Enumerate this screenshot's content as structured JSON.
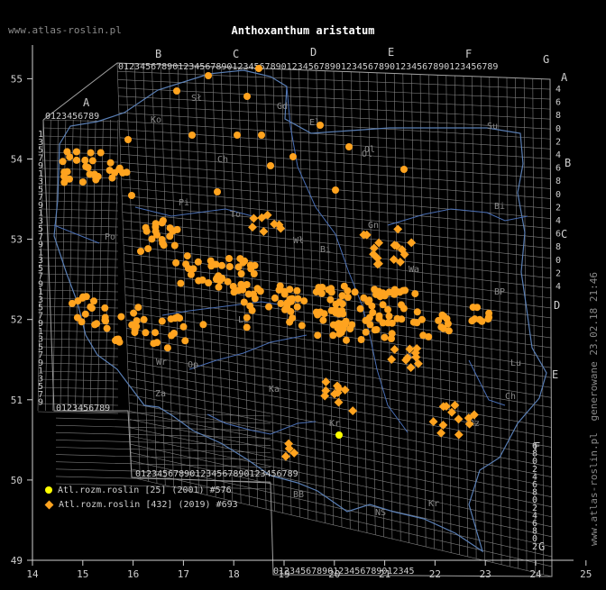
{
  "title": "Anthoxanthum aristatum",
  "site_top": "www.atlas-roslin.pl",
  "site_vertical": "www.atlas-roslin.pl",
  "generated": "generowane 23.02.18 21:46",
  "colors": {
    "background": "#000000",
    "grid": "#7f7f7f",
    "borders": "#5a7fb5",
    "rivers": "#4a6fb5",
    "point_yellow": "#ffff00",
    "point_orange": "#ffa31f",
    "axis": "#cfcfcf"
  },
  "x_axis": {
    "ticks": [
      "14",
      "15",
      "16",
      "17",
      "18",
      "19",
      "20",
      "21",
      "22",
      "23",
      "24",
      "25"
    ],
    "range": [
      14,
      25
    ]
  },
  "y_axis": {
    "ticks": [
      "49",
      "50",
      "51",
      "52",
      "53",
      "54",
      "55"
    ],
    "range": [
      49,
      55.6
    ]
  },
  "grid_letters": {
    "top": [
      "A",
      "B",
      "C",
      "D",
      "E",
      "F",
      "G"
    ],
    "right": [
      "A",
      "B",
      "C",
      "D",
      "E",
      "F",
      "G"
    ]
  },
  "top_digits_A": "0123456789",
  "top_digits_main": "0123456789012345678901234567890123456789012345678901234567890123456789",
  "bottom_digits_west": "0123456789",
  "bottom_digits_main": "012345678901234567890123456789",
  "bottom_digits_east": "01234567890123456789012345",
  "left_digits": [
    "1",
    "3",
    "5",
    "7",
    "9",
    "1",
    "3",
    "5",
    "7",
    "9",
    "1",
    "3",
    "5",
    "7",
    "9",
    "1",
    "3",
    "5",
    "7",
    "9",
    "1",
    "3",
    "5",
    "7",
    "9",
    "1",
    "3",
    "5",
    "7",
    "9",
    "1",
    "3",
    "5",
    "7",
    "9"
  ],
  "right_digits": [
    "4",
    "6",
    "8",
    "0",
    "2",
    "4",
    "6",
    "8",
    "0",
    "2",
    "4",
    "6",
    "8",
    "0",
    "2",
    "4",
    "6",
    "8",
    "0",
    "2",
    "4",
    "6",
    "8",
    "0",
    "2",
    "4",
    "6",
    "8",
    "0",
    "2",
    "4",
    "6",
    "8",
    "0",
    "2",
    "4",
    "6",
    "8",
    "0",
    "2",
    "4",
    "6",
    "8"
  ],
  "region_labels": [
    "Sł",
    "Gd",
    "Ko",
    "El",
    "Ol",
    "Su",
    "Ch",
    "Bi",
    "Pi",
    "To",
    "Ol",
    "Wł",
    "Gn",
    "Po",
    "Bi",
    "Wa",
    "BP",
    "Le",
    "Ki",
    "Lu",
    "Ch",
    "Wr",
    "Op",
    "Ka",
    "Kr",
    "Rz",
    "Za",
    "BB",
    "NS",
    "Kr"
  ],
  "legend": [
    {
      "label": "Atl.rozm.roslin [25] (2001) #576",
      "color": "#ffff00",
      "shape": "circle"
    },
    {
      "label": "Atl.rozm.roslin [432] (2019) #693",
      "color": "#ffa31f",
      "shape": "diamond"
    }
  ],
  "point_counts": {
    "yellow": 1,
    "orange_circle": 280,
    "orange_diamond": 60
  }
}
